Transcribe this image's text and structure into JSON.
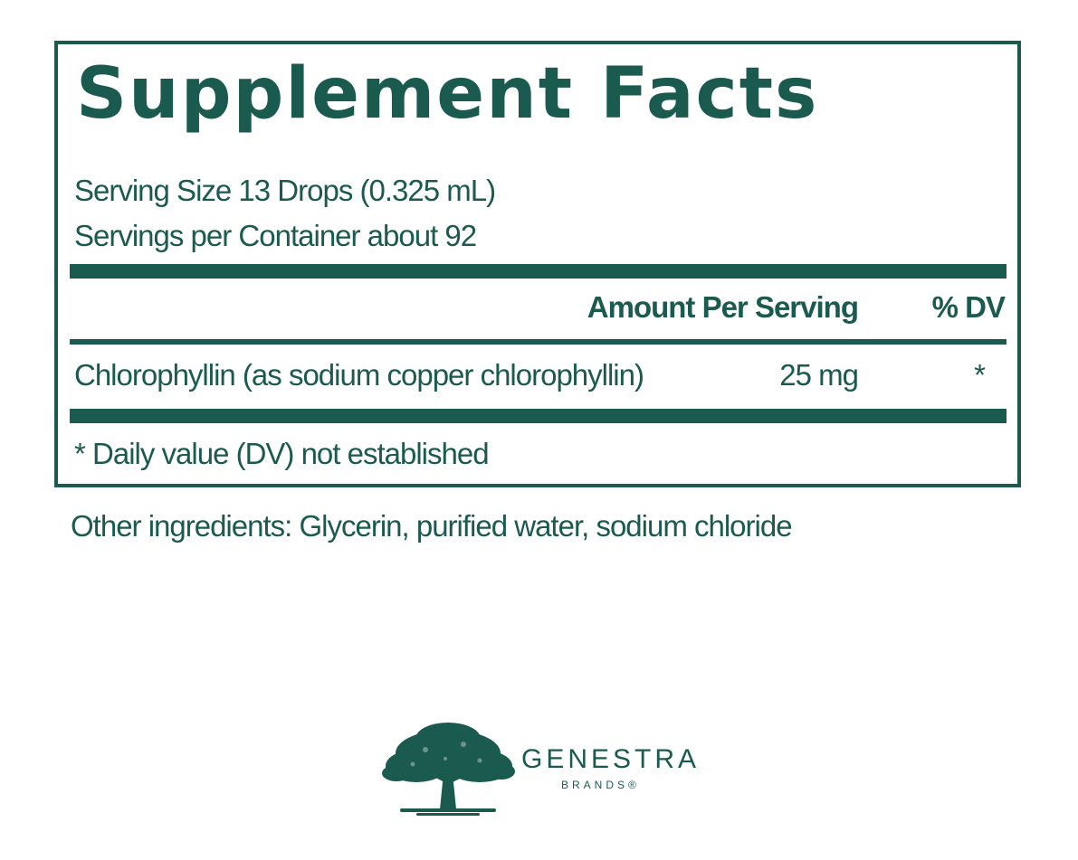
{
  "panel": {
    "title": "Supplement Facts",
    "serving_size": "Serving Size 13 Drops (0.325 mL)",
    "servings_per_container": "Servings per Container about 92",
    "column_headers": {
      "amount": "Amount Per Serving",
      "dv": "% DV"
    },
    "rows": [
      {
        "name": "Chlorophyllin (as sodium copper chlorophyllin)",
        "amount": "25 mg",
        "dv": "*"
      }
    ],
    "footnote": "* Daily value (DV) not established"
  },
  "other_ingredients": "Other ingredients: Glycerin, purified water, sodium chloride",
  "brand": {
    "name": "GENESTRA",
    "sub": "BRANDS®",
    "logo_icon": "tree-icon"
  },
  "colors": {
    "accent": "#1b5a4e",
    "background": "#ffffff"
  }
}
